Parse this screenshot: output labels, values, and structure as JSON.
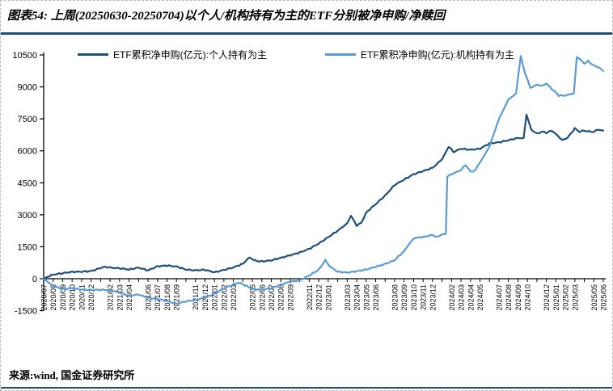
{
  "figure": {
    "title": "图表54: 上周(20250630-20250704)以个人/机构持有为主的ETF分别被净申购/净赎回",
    "source": "来源:wind, 国金证券研究所",
    "accent_color": "#1F4E79"
  },
  "legend": [
    {
      "label": "ETF累积净申购(亿元):个人持有为主",
      "color": "#1F4E79"
    },
    {
      "label": "ETF累积净申购(亿元):机构持有为主",
      "color": "#5B9BD5"
    }
  ],
  "chart_data": {
    "type": "line",
    "title": "上周(20250630-20250704)以个人/机构持有为主的ETF分别被净申购/净赎回",
    "ylabel": "ETF累积净申购(亿元)",
    "ylim": [
      -1500,
      10500
    ],
    "y_ticks": [
      10500,
      9000,
      7500,
      6000,
      4500,
      3000,
      1500,
      0,
      -1500
    ],
    "x_start": "2020/07",
    "x_end": "2025/06",
    "x_months_total": 60,
    "grid": false,
    "legend_position": "top-center",
    "x_tick_labels": [
      {
        "i": 0,
        "t": "2020/07"
      },
      {
        "i": 1,
        "t": "2020/08"
      },
      {
        "i": 2,
        "t": "2020/09"
      },
      {
        "i": 3,
        "t": "2020/10"
      },
      {
        "i": 4,
        "t": "2020/11"
      },
      {
        "i": 5,
        "t": "2020/12"
      },
      {
        "i": 7,
        "t": "2021/02"
      },
      {
        "i": 8,
        "t": "2021/03"
      },
      {
        "i": 9,
        "t": "2021/04"
      },
      {
        "i": 11,
        "t": "2021/06"
      },
      {
        "i": 12,
        "t": "2021/07"
      },
      {
        "i": 13,
        "t": "2021/08"
      },
      {
        "i": 14,
        "t": "2021/09"
      },
      {
        "i": 16,
        "t": "2021/11"
      },
      {
        "i": 17,
        "t": "2021/12"
      },
      {
        "i": 18,
        "t": "2022/01"
      },
      {
        "i": 19,
        "t": "2022/02"
      },
      {
        "i": 20,
        "t": "2022/03"
      },
      {
        "i": 22,
        "t": "2022/05"
      },
      {
        "i": 23,
        "t": "2022/06"
      },
      {
        "i": 24,
        "t": "2022/07"
      },
      {
        "i": 25,
        "t": "2022/08"
      },
      {
        "i": 26,
        "t": "2022/09"
      },
      {
        "i": 28,
        "t": "2022/11"
      },
      {
        "i": 29,
        "t": "2022/12"
      },
      {
        "i": 30,
        "t": "2023/01"
      },
      {
        "i": 32,
        "t": "2023/03"
      },
      {
        "i": 33,
        "t": "2023/04"
      },
      {
        "i": 34,
        "t": "2023/05"
      },
      {
        "i": 35,
        "t": "2023/06"
      },
      {
        "i": 37,
        "t": "2023/08"
      },
      {
        "i": 38,
        "t": "2023/09"
      },
      {
        "i": 39,
        "t": "2023/10"
      },
      {
        "i": 40,
        "t": "2023/11"
      },
      {
        "i": 41,
        "t": "2023/12"
      },
      {
        "i": 43,
        "t": "2024/02"
      },
      {
        "i": 44,
        "t": "2024/03"
      },
      {
        "i": 45,
        "t": "2024/04"
      },
      {
        "i": 46,
        "t": "2024/05"
      },
      {
        "i": 48,
        "t": "2024/07"
      },
      {
        "i": 49,
        "t": "2024/08"
      },
      {
        "i": 50,
        "t": "2024/09"
      },
      {
        "i": 51,
        "t": "2024/10"
      },
      {
        "i": 53,
        "t": "2024/12"
      },
      {
        "i": 54,
        "t": "2025/01"
      },
      {
        "i": 55,
        "t": "2025/02"
      },
      {
        "i": 56,
        "t": "2025/03"
      },
      {
        "i": 58,
        "t": "2025/05"
      },
      {
        "i": 59,
        "t": "2025/06"
      }
    ],
    "series": [
      {
        "name": "ETF累积净申购(亿元):个人持有为主",
        "color": "#1F4E79",
        "points": [
          [
            0,
            0
          ],
          [
            0.4,
            90
          ],
          [
            1,
            190
          ],
          [
            2,
            260
          ],
          [
            3,
            320
          ],
          [
            4,
            330
          ],
          [
            5,
            360
          ],
          [
            6,
            500
          ],
          [
            6.5,
            560
          ],
          [
            7,
            520
          ],
          [
            8,
            490
          ],
          [
            9,
            430
          ],
          [
            10,
            520
          ],
          [
            11,
            390
          ],
          [
            12,
            580
          ],
          [
            13,
            620
          ],
          [
            14,
            570
          ],
          [
            15,
            430
          ],
          [
            16,
            390
          ],
          [
            17,
            420
          ],
          [
            18,
            300
          ],
          [
            19,
            410
          ],
          [
            20,
            530
          ],
          [
            21,
            700
          ],
          [
            21.7,
            1000
          ],
          [
            22.3,
            840
          ],
          [
            23,
            810
          ],
          [
            24,
            860
          ],
          [
            25,
            980
          ],
          [
            26,
            1100
          ],
          [
            27,
            1230
          ],
          [
            28,
            1400
          ],
          [
            29,
            1650
          ],
          [
            30,
            1950
          ],
          [
            31,
            2250
          ],
          [
            32,
            2600
          ],
          [
            32.4,
            2950
          ],
          [
            33,
            2500
          ],
          [
            33.5,
            2620
          ],
          [
            34,
            3100
          ],
          [
            35,
            3500
          ],
          [
            36,
            3900
          ],
          [
            37,
            4400
          ],
          [
            38,
            4650
          ],
          [
            39,
            4900
          ],
          [
            40,
            5050
          ],
          [
            41,
            5200
          ],
          [
            42,
            5600
          ],
          [
            42.7,
            6200
          ],
          [
            43.2,
            5950
          ],
          [
            44,
            6100
          ],
          [
            45,
            6050
          ],
          [
            46,
            6100
          ],
          [
            47,
            6350
          ],
          [
            48,
            6400
          ],
          [
            49,
            6500
          ],
          [
            50,
            6600
          ],
          [
            50.6,
            6600
          ],
          [
            50.9,
            7700
          ],
          [
            51.4,
            7000
          ],
          [
            52,
            6800
          ],
          [
            52.5,
            6900
          ],
          [
            53,
            6850
          ],
          [
            53.6,
            6950
          ],
          [
            54.2,
            6700
          ],
          [
            54.7,
            6500
          ],
          [
            55.2,
            6600
          ],
          [
            56,
            7050
          ],
          [
            56.5,
            6900
          ],
          [
            57,
            6950
          ],
          [
            57.5,
            6900
          ],
          [
            58,
            6900
          ],
          [
            58.5,
            7000
          ],
          [
            59,
            6950
          ]
        ]
      },
      {
        "name": "ETF累积净申购(亿元):机构持有为主",
        "color": "#5B9BD5",
        "points": [
          [
            0,
            0
          ],
          [
            0.4,
            -130
          ],
          [
            1,
            -350
          ],
          [
            2,
            -480
          ],
          [
            3,
            -450
          ],
          [
            4,
            -510
          ],
          [
            5,
            -530
          ],
          [
            6,
            -520
          ],
          [
            7,
            -540
          ],
          [
            8,
            -650
          ],
          [
            9,
            -800
          ],
          [
            10,
            -740
          ],
          [
            11,
            -900
          ],
          [
            12,
            -950
          ],
          [
            13,
            -1050
          ],
          [
            14,
            -1180
          ],
          [
            15,
            -1060
          ],
          [
            16,
            -1000
          ],
          [
            17,
            -900
          ],
          [
            18,
            -700
          ],
          [
            19,
            -450
          ],
          [
            20,
            -280
          ],
          [
            20.5,
            -180
          ],
          [
            21,
            -260
          ],
          [
            22,
            -480
          ],
          [
            23,
            -520
          ],
          [
            24,
            -450
          ],
          [
            25,
            -280
          ],
          [
            26,
            -140
          ],
          [
            27,
            -80
          ],
          [
            28,
            150
          ],
          [
            29,
            420
          ],
          [
            29.7,
            870
          ],
          [
            30.2,
            560
          ],
          [
            31,
            330
          ],
          [
            32,
            290
          ],
          [
            33,
            350
          ],
          [
            34,
            430
          ],
          [
            35,
            560
          ],
          [
            36,
            690
          ],
          [
            37,
            870
          ],
          [
            38,
            1300
          ],
          [
            39,
            1900
          ],
          [
            40,
            1960
          ],
          [
            41,
            2050
          ],
          [
            41.5,
            1950
          ],
          [
            42,
            2080
          ],
          [
            42.4,
            2100
          ],
          [
            42.55,
            4800
          ],
          [
            43,
            4900
          ],
          [
            43.5,
            5000
          ],
          [
            44,
            5100
          ],
          [
            44.5,
            5350
          ],
          [
            45,
            5000
          ],
          [
            45.5,
            5100
          ],
          [
            46,
            5450
          ],
          [
            47,
            6200
          ],
          [
            48,
            7500
          ],
          [
            49,
            8400
          ],
          [
            49.8,
            8700
          ],
          [
            50.3,
            10450
          ],
          [
            50.7,
            9700
          ],
          [
            51,
            9350
          ],
          [
            51.3,
            8950
          ],
          [
            52,
            9100
          ],
          [
            52.5,
            9050
          ],
          [
            53,
            9150
          ],
          [
            53.6,
            8900
          ],
          [
            54.3,
            8600
          ],
          [
            54.9,
            8590
          ],
          [
            55.5,
            8650
          ],
          [
            55.9,
            8700
          ],
          [
            56.2,
            10400
          ],
          [
            56.6,
            10280
          ],
          [
            57,
            10090
          ],
          [
            57.4,
            10200
          ],
          [
            58,
            10000
          ],
          [
            58.6,
            9900
          ],
          [
            59,
            9750
          ]
        ]
      }
    ]
  }
}
